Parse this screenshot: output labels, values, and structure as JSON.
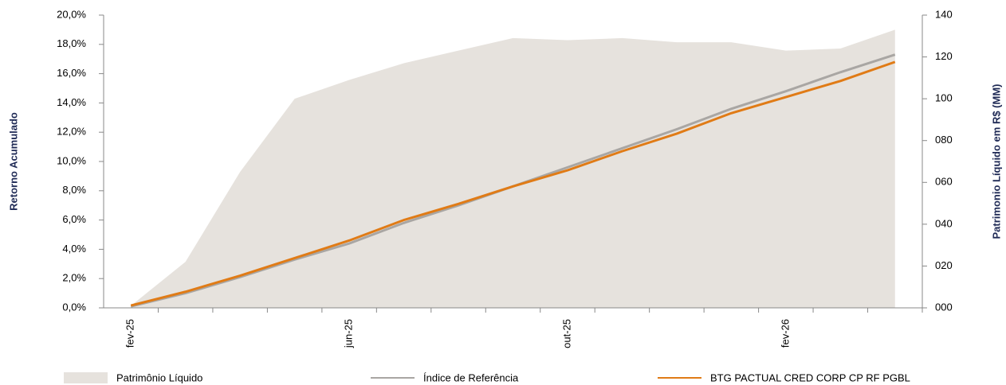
{
  "chart_data": {
    "type": "line",
    "y_label": "Retorno Acumulado",
    "y2_label": "Patrimonio Líquido em R$ (MM)",
    "categories": [
      "fev-25",
      null,
      null,
      null,
      "jun-25",
      null,
      null,
      null,
      "out-25",
      null,
      null,
      null,
      "fev-26",
      null,
      null
    ],
    "ylim": [
      0,
      20
    ],
    "yticks": [
      {
        "value": 0,
        "label": "0,0%"
      },
      {
        "value": 2,
        "label": "2,0%"
      },
      {
        "value": 4,
        "label": "4,0%"
      },
      {
        "value": 6,
        "label": "6,0%"
      },
      {
        "value": 8,
        "label": "8,0%"
      },
      {
        "value": 10,
        "label": "10,0%"
      },
      {
        "value": 12,
        "label": "12,0%"
      },
      {
        "value": 14,
        "label": "14,0%"
      },
      {
        "value": 16,
        "label": "16,0%"
      },
      {
        "value": 18,
        "label": "18,0%"
      },
      {
        "value": 20,
        "label": "20,0%"
      }
    ],
    "y2lim": [
      0,
      140
    ],
    "y2ticks": [
      {
        "value": 0,
        "label": "000"
      },
      {
        "value": 20,
        "label": "020"
      },
      {
        "value": 40,
        "label": "040"
      },
      {
        "value": 60,
        "label": "060"
      },
      {
        "value": 80,
        "label": "080"
      },
      100,
      120,
      140
    ],
    "series": [
      {
        "name": "Patrimônio Líquido",
        "kind": "area",
        "axis": "y2",
        "color": "#e6e2dd",
        "values": [
          1,
          22,
          65,
          100,
          109,
          117,
          123,
          129,
          128,
          129,
          127,
          127,
          123,
          124,
          133
        ]
      },
      {
        "name": "Índice de Referência",
        "kind": "line",
        "color": "#a9a6a3",
        "values": [
          0.1,
          1.0,
          2.1,
          3.3,
          4.4,
          5.8,
          7.0,
          8.3,
          9.6,
          10.9,
          12.2,
          13.6,
          14.8,
          16.1,
          17.3
        ]
      },
      {
        "name": "BTG PACTUAL CRED CORP CP RF PGBL",
        "kind": "line",
        "color": "#e07b16",
        "values": [
          0.16,
          1.1,
          2.2,
          3.4,
          4.6,
          6.0,
          7.1,
          8.3,
          9.4,
          10.7,
          11.9,
          13.3,
          14.4,
          15.5,
          16.8
        ]
      }
    ]
  }
}
